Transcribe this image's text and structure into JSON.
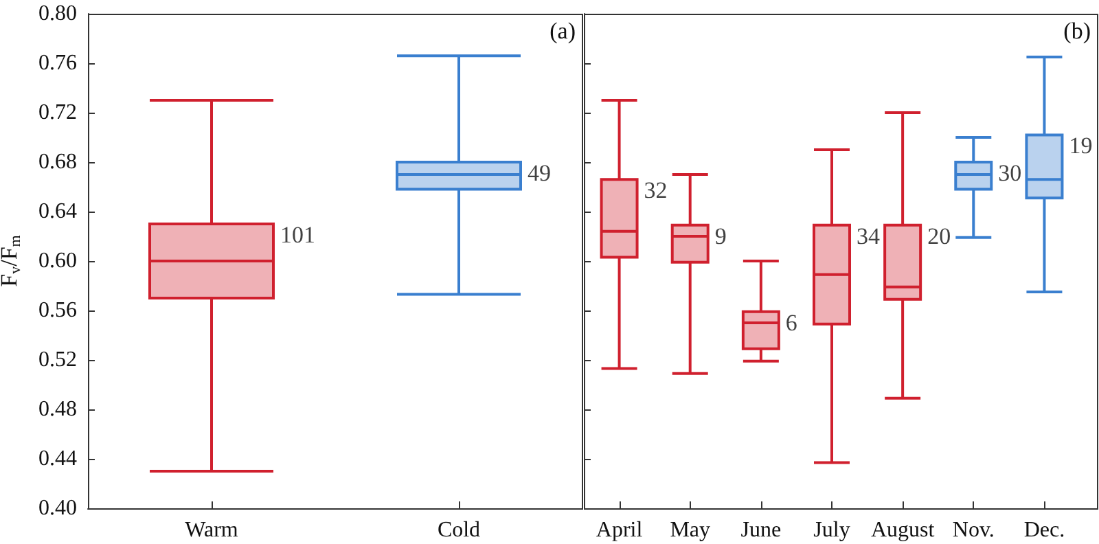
{
  "chart_data": [
    {
      "type": "box",
      "ylabel": "F$_{v}$/F$_{m}$",
      "categories": [
        "Warm",
        "Cold"
      ],
      "boxes": [
        {
          "low": 0.43,
          "q1": 0.57,
          "median": 0.6,
          "q3": 0.63,
          "high": 0.73
        },
        {
          "low": 0.573,
          "q1": 0.658,
          "median": 0.67,
          "q3": 0.68,
          "high": 0.766
        }
      ],
      "colors": [
        "#d0202e",
        "#3a7fcf"
      ],
      "ylim": [
        0.4,
        0.8
      ],
      "yticks": [
        {
          "value": 0.4,
          "label": "0.40"
        },
        0.44,
        0.48,
        0.52,
        0.56,
        {
          "value": 0.6,
          "label": "0.60"
        },
        0.64,
        0.68,
        0.72,
        0.76,
        {
          "value": 0.8,
          "label": "0.80"
        }
      ],
      "grid": false,
      "annotations": [
        "(a)",
        {
          "text": "101",
          "x": "Warm",
          "y": 0.63
        },
        {
          "text": "49",
          "x": "Cold",
          "y": 0.68
        }
      ]
    },
    {
      "type": "box",
      "categories": [
        "April",
        "May",
        "June",
        "July",
        "August",
        "Nov.",
        "Dec."
      ],
      "boxes": [
        {
          "low": 0.513,
          "q1": 0.603,
          "median": 0.624,
          "q3": 0.666,
          "high": 0.73
        },
        {
          "low": 0.509,
          "q1": 0.599,
          "median": 0.62,
          "q3": 0.629,
          "high": 0.67
        },
        {
          "low": 0.519,
          "q1": 0.529,
          "median": 0.55,
          "q3": 0.559,
          "high": 0.6
        },
        {
          "low": 0.437,
          "q1": 0.549,
          "median": 0.589,
          "q3": 0.629,
          "high": 0.69
        },
        {
          "low": 0.489,
          "q1": 0.569,
          "median": 0.579,
          "q3": 0.629,
          "high": 0.72
        },
        {
          "low": 0.619,
          "q1": 0.658,
          "median": 0.67,
          "q3": 0.68,
          "high": 0.7
        },
        {
          "low": 0.575,
          "q1": 0.651,
          "median": 0.666,
          "q3": 0.702,
          "high": 0.765
        }
      ],
      "colors": [
        "#d0202e",
        "#d0202e",
        "#d0202e",
        "#d0202e",
        "#d0202e",
        "#3a7fcf",
        "#3a7fcf"
      ],
      "ylim": [
        0.4,
        0.8
      ],
      "yticks": [
        0.4,
        0.44,
        0.48,
        0.52,
        0.56,
        0.6,
        0.64,
        0.68,
        0.72,
        0.76,
        0.8
      ],
      "grid": false,
      "tick_labels": "x",
      "annotations": [
        "(b)",
        {
          "text": "32",
          "x": "April",
          "y": 0.666
        },
        {
          "text": "9",
          "x": "May",
          "y": 0.629
        },
        {
          "text": "6",
          "x": "June",
          "y": 0.559
        },
        {
          "text": "34",
          "x": "July",
          "y": 0.629
        },
        {
          "text": "20",
          "x": "August",
          "y": 0.629
        },
        {
          "text": "30",
          "x": "Nov.",
          "y": 0.68
        },
        {
          "text": "19",
          "x": "Dec.",
          "y": 0.702
        }
      ]
    }
  ]
}
